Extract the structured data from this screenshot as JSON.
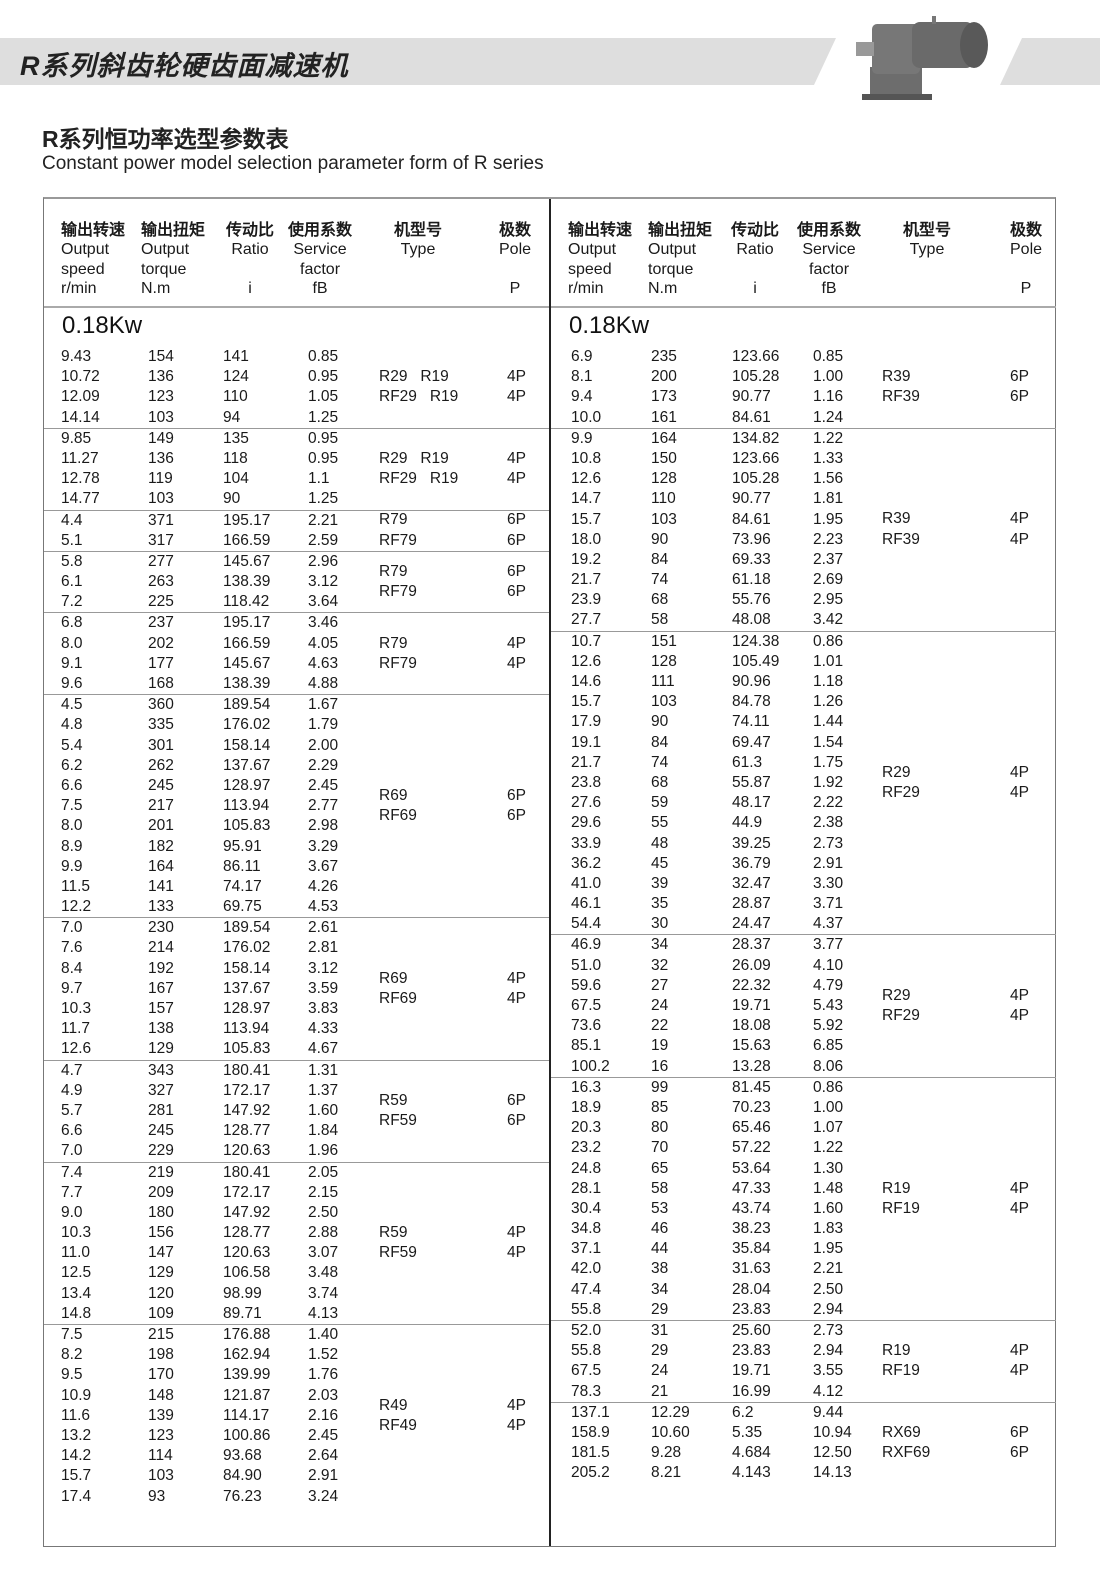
{
  "banner": {
    "title": "R系列斜齿轮硬齿面减速机"
  },
  "section": {
    "title": "R系列恒功率选型参数表",
    "subtitle": "Constant power model selection parameter form of  R series"
  },
  "headers": [
    {
      "zh": "输出转速",
      "en1": "Output",
      "en2": "speed",
      "unit": "r/min"
    },
    {
      "zh": "输出扭矩",
      "en1": "Output",
      "en2": "torque",
      "unit": "N.m"
    },
    {
      "zh": "传动比",
      "en1": "Ratio",
      "en2": "",
      "unit": "i"
    },
    {
      "zh": "使用系数",
      "en1": "Service",
      "en2": "factor",
      "unit": "fB"
    },
    {
      "zh": "机型号",
      "en1": "Type",
      "en2": "",
      "unit": ""
    },
    {
      "zh": "极数",
      "en1": "Pole",
      "en2": "",
      "unit": "P"
    }
  ],
  "left": {
    "power": "0.18Kw",
    "groups": [
      {
        "rows": [
          [
            "9.43",
            "154",
            "141",
            "0.85"
          ],
          [
            "10.72",
            "136",
            "124",
            "0.95"
          ],
          [
            "12.09",
            "123",
            "110",
            "1.05"
          ],
          [
            "14.14",
            "103",
            "94",
            "1.25"
          ]
        ],
        "types": [
          "R29   R19",
          "RF29   R19"
        ],
        "poles": [
          "4P",
          "4P"
        ]
      },
      {
        "rows": [
          [
            "9.85",
            "149",
            "135",
            "0.95"
          ],
          [
            "11.27",
            "136",
            "118",
            "0.95"
          ],
          [
            "12.78",
            "119",
            "104",
            "1.1"
          ],
          [
            "14.77",
            "103",
            "90",
            "1.25"
          ]
        ],
        "types": [
          "R29   R19",
          "RF29   R19"
        ],
        "poles": [
          "4P",
          "4P"
        ]
      },
      {
        "rows": [
          [
            "4.4",
            "371",
            "195.17",
            "2.21"
          ],
          [
            "5.1",
            "317",
            "166.59",
            "2.59"
          ]
        ],
        "types": [
          "R79",
          "RF79"
        ],
        "poles": [
          "6P",
          "6P"
        ]
      },
      {
        "rows": [
          [
            "5.8",
            "277",
            "145.67",
            "2.96"
          ],
          [
            "6.1",
            "263",
            "138.39",
            "3.12"
          ],
          [
            "7.2",
            "225",
            "118.42",
            "3.64"
          ]
        ],
        "types": [
          "R79",
          "RF79"
        ],
        "poles": [
          "6P",
          "6P"
        ]
      },
      {
        "rows": [
          [
            "6.8",
            "237",
            "195.17",
            "3.46"
          ],
          [
            "8.0",
            "202",
            "166.59",
            "4.05"
          ],
          [
            "9.1",
            "177",
            "145.67",
            "4.63"
          ],
          [
            "9.6",
            "168",
            "138.39",
            "4.88"
          ]
        ],
        "types": [
          "R79",
          "RF79"
        ],
        "poles": [
          "4P",
          "4P"
        ]
      },
      {
        "rows": [
          [
            "4.5",
            "360",
            "189.54",
            "1.67"
          ],
          [
            "4.8",
            "335",
            "176.02",
            "1.79"
          ],
          [
            "5.4",
            "301",
            "158.14",
            "2.00"
          ],
          [
            "6.2",
            "262",
            "137.67",
            "2.29"
          ],
          [
            "6.6",
            "245",
            "128.97",
            "2.45"
          ],
          [
            "7.5",
            "217",
            "113.94",
            "2.77"
          ],
          [
            "8.0",
            "201",
            "105.83",
            "2.98"
          ],
          [
            "8.9",
            "182",
            "95.91",
            "3.29"
          ],
          [
            "9.9",
            "164",
            "86.11",
            "3.67"
          ],
          [
            "11.5",
            "141",
            "74.17",
            "4.26"
          ],
          [
            "12.2",
            "133",
            "69.75",
            "4.53"
          ]
        ],
        "types": [
          "R69",
          "RF69"
        ],
        "poles": [
          "6P",
          "6P"
        ]
      },
      {
        "rows": [
          [
            "7.0",
            "230",
            "189.54",
            "2.61"
          ],
          [
            "7.6",
            "214",
            "176.02",
            "2.81"
          ],
          [
            "8.4",
            "192",
            "158.14",
            "3.12"
          ],
          [
            "9.7",
            "167",
            "137.67",
            "3.59"
          ],
          [
            "10.3",
            "157",
            "128.97",
            "3.83"
          ],
          [
            "11.7",
            "138",
            "113.94",
            "4.33"
          ],
          [
            "12.6",
            "129",
            "105.83",
            "4.67"
          ]
        ],
        "types": [
          "R69",
          "RF69"
        ],
        "poles": [
          "4P",
          "4P"
        ]
      },
      {
        "rows": [
          [
            "4.7",
            "343",
            "180.41",
            "1.31"
          ],
          [
            "4.9",
            "327",
            "172.17",
            "1.37"
          ],
          [
            "5.7",
            "281",
            "147.92",
            "1.60"
          ],
          [
            "6.6",
            "245",
            "128.77",
            "1.84"
          ],
          [
            "7.0",
            "229",
            "120.63",
            "1.96"
          ]
        ],
        "types": [
          "R59",
          "RF59"
        ],
        "poles": [
          "6P",
          "6P"
        ]
      },
      {
        "rows": [
          [
            "7.4",
            "219",
            "180.41",
            "2.05"
          ],
          [
            "7.7",
            "209",
            "172.17",
            "2.15"
          ],
          [
            "9.0",
            "180",
            "147.92",
            "2.50"
          ],
          [
            "10.3",
            "156",
            "128.77",
            "2.88"
          ],
          [
            "11.0",
            "147",
            "120.63",
            "3.07"
          ],
          [
            "12.5",
            "129",
            "106.58",
            "3.48"
          ],
          [
            "13.4",
            "120",
            "98.99",
            "3.74"
          ],
          [
            "14.8",
            "109",
            "89.71",
            "4.13"
          ]
        ],
        "types": [
          "R59",
          "RF59"
        ],
        "poles": [
          "4P",
          "4P"
        ]
      },
      {
        "rows": [
          [
            "7.5",
            "215",
            "176.88",
            "1.40"
          ],
          [
            "8.2",
            "198",
            "162.94",
            "1.52"
          ],
          [
            "9.5",
            "170",
            "139.99",
            "1.76"
          ],
          [
            "10.9",
            "148",
            "121.87",
            "2.03"
          ],
          [
            "11.6",
            "139",
            "114.17",
            "2.16"
          ],
          [
            "13.2",
            "123",
            "100.86",
            "2.45"
          ],
          [
            "14.2",
            "114",
            "93.68",
            "2.64"
          ],
          [
            "15.7",
            "103",
            "84.90",
            "2.91"
          ],
          [
            "17.4",
            "93",
            "76.23",
            "3.24"
          ]
        ],
        "types": [
          "R49",
          "RF49"
        ],
        "poles": [
          "4P",
          "4P"
        ]
      }
    ]
  },
  "right": {
    "power": "0.18Kw",
    "groups": [
      {
        "rows": [
          [
            "6.9",
            "235",
            "123.66",
            "0.85"
          ],
          [
            "8.1",
            "200",
            "105.28",
            "1.00"
          ],
          [
            "9.4",
            "173",
            "90.77",
            "1.16"
          ],
          [
            "10.0",
            "161",
            "84.61",
            "1.24"
          ]
        ],
        "types": [
          "R39",
          "RF39"
        ],
        "poles": [
          "6P",
          "6P"
        ]
      },
      {
        "rows": [
          [
            "9.9",
            "164",
            "134.82",
            "1.22"
          ],
          [
            "10.8",
            "150",
            "123.66",
            "1.33"
          ],
          [
            "12.6",
            "128",
            "105.28",
            "1.56"
          ],
          [
            "14.7",
            "110",
            "90.77",
            "1.81"
          ],
          [
            "15.7",
            "103",
            "84.61",
            "1.95"
          ],
          [
            "18.0",
            "90",
            "73.96",
            "2.23"
          ],
          [
            "19.2",
            "84",
            "69.33",
            "2.37"
          ],
          [
            "21.7",
            "74",
            "61.18",
            "2.69"
          ],
          [
            "23.9",
            "68",
            "55.76",
            "2.95"
          ],
          [
            "27.7",
            "58",
            "48.08",
            "3.42"
          ]
        ],
        "types": [
          "R39",
          "RF39"
        ],
        "poles": [
          "4P",
          "4P"
        ]
      },
      {
        "rows": [
          [
            "10.7",
            "151",
            "124.38",
            "0.86"
          ],
          [
            "12.6",
            "128",
            "105.49",
            "1.01"
          ],
          [
            "14.6",
            "111",
            "90.96",
            "1.18"
          ],
          [
            "15.7",
            "103",
            "84.78",
            "1.26"
          ],
          [
            "17.9",
            "90",
            "74.11",
            "1.44"
          ],
          [
            "19.1",
            "84",
            "69.47",
            "1.54"
          ],
          [
            "21.7",
            "74",
            "61.3",
            "1.75"
          ],
          [
            "23.8",
            "68",
            "55.87",
            "1.92"
          ],
          [
            "27.6",
            "59",
            "48.17",
            "2.22"
          ],
          [
            "29.6",
            "55",
            "44.9",
            "2.38"
          ],
          [
            "33.9",
            "48",
            "39.25",
            "2.73"
          ],
          [
            "36.2",
            "45",
            "36.79",
            "2.91"
          ],
          [
            "41.0",
            "39",
            "32.47",
            "3.30"
          ],
          [
            "46.1",
            "35",
            "28.87",
            "3.71"
          ],
          [
            "54.4",
            "30",
            "24.47",
            "4.37"
          ]
        ],
        "types": [
          "R29",
          "RF29"
        ],
        "poles": [
          "4P",
          "4P"
        ]
      },
      {
        "rows": [
          [
            "46.9",
            "34",
            "28.37",
            "3.77"
          ],
          [
            "51.0",
            "32",
            "26.09",
            "4.10"
          ],
          [
            "59.6",
            "27",
            "22.32",
            "4.79"
          ],
          [
            "67.5",
            "24",
            "19.71",
            "5.43"
          ],
          [
            "73.6",
            "22",
            "18.08",
            "5.92"
          ],
          [
            "85.1",
            "19",
            "15.63",
            "6.85"
          ],
          [
            "100.2",
            "16",
            "13.28",
            "8.06"
          ]
        ],
        "types": [
          "R29",
          "RF29"
        ],
        "poles": [
          "4P",
          "4P"
        ]
      },
      {
        "rows": [
          [
            "16.3",
            "99",
            "81.45",
            "0.86"
          ],
          [
            "18.9",
            "85",
            "70.23",
            "1.00"
          ],
          [
            "20.3",
            "80",
            "65.46",
            "1.07"
          ],
          [
            "23.2",
            "70",
            "57.22",
            "1.22"
          ],
          [
            "24.8",
            "65",
            "53.64",
            "1.30"
          ],
          [
            "28.1",
            "58",
            "47.33",
            "1.48"
          ],
          [
            "30.4",
            "53",
            "43.74",
            "1.60"
          ],
          [
            "34.8",
            "46",
            "38.23",
            "1.83"
          ],
          [
            "37.1",
            "44",
            "35.84",
            "1.95"
          ],
          [
            "42.0",
            "38",
            "31.63",
            "2.21"
          ],
          [
            "47.4",
            "34",
            "28.04",
            "2.50"
          ],
          [
            "55.8",
            "29",
            "23.83",
            "2.94"
          ]
        ],
        "types": [
          "R19",
          "RF19"
        ],
        "poles": [
          "4P",
          "4P"
        ]
      },
      {
        "rows": [
          [
            "52.0",
            "31",
            "25.60",
            "2.73"
          ],
          [
            "55.8",
            "29",
            "23.83",
            "2.94"
          ],
          [
            "67.5",
            "24",
            "19.71",
            "3.55"
          ],
          [
            "78.3",
            "21",
            "16.99",
            "4.12"
          ]
        ],
        "types": [
          "R19",
          "RF19"
        ],
        "poles": [
          "4P",
          "4P"
        ]
      },
      {
        "rows": [
          [
            "137.1",
            "12.29",
            "6.2",
            "9.44"
          ],
          [
            "158.9",
            "10.60",
            "5.35",
            "10.94"
          ],
          [
            "181.5",
            "9.28",
            "4.684",
            "12.50"
          ],
          [
            "205.2",
            "8.21",
            "4.143",
            "14.13"
          ]
        ],
        "types": [
          "RX69",
          "RXF69"
        ],
        "poles": [
          "6P",
          "6P"
        ]
      }
    ]
  }
}
